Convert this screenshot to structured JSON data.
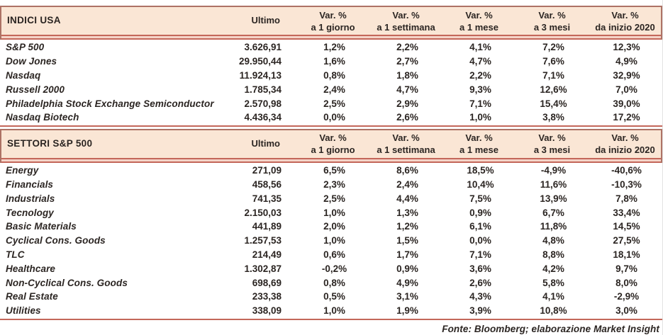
{
  "colors": {
    "band_background": "#fae6d5",
    "rule_red": "#c4675a",
    "band_border": "#ad7265",
    "rule_gap": "#f4d4c8",
    "text": "#2b2522"
  },
  "columns": {
    "ultimo": "Ultimo",
    "var_label": "Var. %",
    "subs": [
      "a 1 giorno",
      "a 1 settimana",
      "a 1 mese",
      "a 3 mesi",
      "da inizio 2020"
    ]
  },
  "sections": [
    {
      "title": "INDICI USA",
      "rows": [
        {
          "name": "S&P 500",
          "ultimo": "3.626,91",
          "vars": [
            "1,2%",
            "2,2%",
            "4,1%",
            "7,2%",
            "12,3%"
          ]
        },
        {
          "name": "Dow Jones",
          "ultimo": "29.950,44",
          "vars": [
            "1,6%",
            "2,7%",
            "4,7%",
            "7,6%",
            "4,9%"
          ]
        },
        {
          "name": "Nasdaq",
          "ultimo": "11.924,13",
          "vars": [
            "0,8%",
            "1,8%",
            "2,2%",
            "7,1%",
            "32,9%"
          ]
        },
        {
          "name": "Russell 2000",
          "ultimo": "1.785,34",
          "vars": [
            "2,4%",
            "4,7%",
            "9,3%",
            "12,6%",
            "7,0%"
          ]
        },
        {
          "name": "Philadelphia Stock Exchange Semiconductor",
          "ultimo": "2.570,98",
          "vars": [
            "2,5%",
            "2,9%",
            "7,1%",
            "15,4%",
            "39,0%"
          ]
        },
        {
          "name": "Nasdaq Biotech",
          "ultimo": "4.436,34",
          "vars": [
            "0,0%",
            "2,6%",
            "1,0%",
            "3,8%",
            "17,2%"
          ]
        }
      ]
    },
    {
      "title": "SETTORI S&P 500",
      "rows": [
        {
          "name": "Energy",
          "ultimo": "271,09",
          "vars": [
            "6,5%",
            "8,6%",
            "18,5%",
            "-4,9%",
            "-40,6%"
          ]
        },
        {
          "name": "Financials",
          "ultimo": "458,56",
          "vars": [
            "2,3%",
            "2,4%",
            "10,4%",
            "11,6%",
            "-10,3%"
          ]
        },
        {
          "name": "Industrials",
          "ultimo": "741,35",
          "vars": [
            "2,5%",
            "4,4%",
            "7,5%",
            "13,9%",
            "7,8%"
          ]
        },
        {
          "name": "Tecnology",
          "ultimo": "2.150,03",
          "vars": [
            "1,0%",
            "1,3%",
            "0,9%",
            "6,7%",
            "33,4%"
          ]
        },
        {
          "name": "Basic Materials",
          "ultimo": "441,89",
          "vars": [
            "2,0%",
            "1,2%",
            "6,1%",
            "11,8%",
            "14,5%"
          ]
        },
        {
          "name": "Cyclical Cons. Goods",
          "ultimo": "1.257,53",
          "vars": [
            "1,0%",
            "1,5%",
            "0,0%",
            "4,8%",
            "27,5%"
          ]
        },
        {
          "name": "TLC",
          "ultimo": "214,49",
          "vars": [
            "0,6%",
            "1,7%",
            "7,1%",
            "8,8%",
            "18,1%"
          ]
        },
        {
          "name": "Healthcare",
          "ultimo": "1.302,87",
          "vars": [
            "-0,2%",
            "0,9%",
            "3,6%",
            "4,2%",
            "9,7%"
          ]
        },
        {
          "name": "Non-Cyclical Cons. Goods",
          "ultimo": "698,69",
          "vars": [
            "0,8%",
            "4,9%",
            "2,6%",
            "5,8%",
            "8,0%"
          ]
        },
        {
          "name": "Real Estate",
          "ultimo": "233,38",
          "vars": [
            "0,5%",
            "3,1%",
            "4,3%",
            "4,1%",
            "-2,9%"
          ]
        },
        {
          "name": "Utilities",
          "ultimo": "338,09",
          "vars": [
            "1,0%",
            "1,9%",
            "3,9%",
            "10,8%",
            "3,0%"
          ]
        }
      ]
    }
  ],
  "footer": {
    "text": "Fonte: Bloomberg; elaborazione Market Insight"
  }
}
